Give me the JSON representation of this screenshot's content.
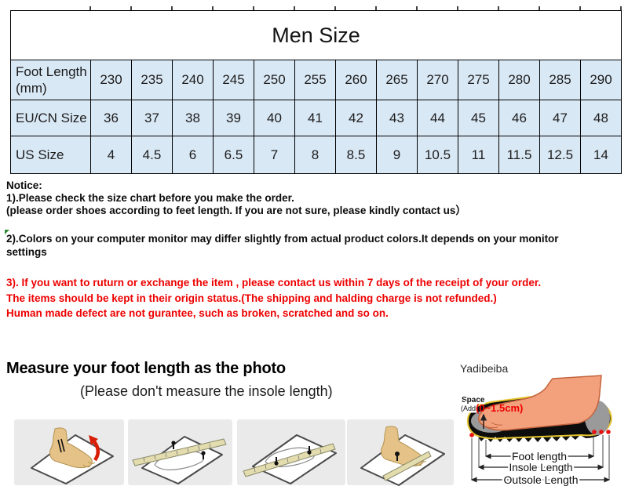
{
  "size_chart": {
    "title": "Men Size",
    "rows": [
      {
        "label": "Foot Length (mm)",
        "values": [
          "230",
          "235",
          "240",
          "245",
          "250",
          "255",
          "260",
          "265",
          "270",
          "275",
          "280",
          "285",
          "290"
        ]
      },
      {
        "label": "EU/CN Size",
        "values": [
          "36",
          "37",
          "38",
          "39",
          "40",
          "41",
          "42",
          "43",
          "44",
          "45",
          "46",
          "47",
          "48"
        ]
      },
      {
        "label": "US Size",
        "values": [
          "4",
          "4.5",
          "6",
          "6.5",
          "7",
          "8",
          "8.5",
          "9",
          "10.5",
          "11",
          "11.5",
          "12.5",
          "14"
        ]
      }
    ],
    "cell_color": "#d9e8f5",
    "border_color": "#000000"
  },
  "notice": {
    "heading": "Notice:",
    "line1": "1).Please check the size chart before you make the order.",
    "line2": "(please order shoes according to feet length. If you are not sure, please kindly contact us）",
    "monitor_line1": "2).Colors on your computer monitor may differ slightly from actual product colors.It depends on your monitor",
    "monitor_line2": "settings"
  },
  "return_policy": {
    "color": "#ee0000",
    "line1": "3). If you want to ruturn or exchange the item , please contact us within 7 days of the receipt of your order.",
    "line2": "The items should be kept in their origin status.(The shipping and halding charge is not refunded.)",
    "line3": "Human made defect are not gurantee, such as broken, scratched and so on."
  },
  "measure": {
    "title": "Measure your foot length as the photo",
    "subtitle": "(Please don't measure the insole length)",
    "brand": "Yadibeiba"
  },
  "foot_diagram": {
    "space_label": "Space",
    "add_label": "(Add",
    "range_label": "(0~1.5cm)",
    "range_color": "#ee0000",
    "foot_length_label": "Foot length",
    "insole_length_label": "Insole Length",
    "outsole_length_label": "Outsole Length"
  }
}
